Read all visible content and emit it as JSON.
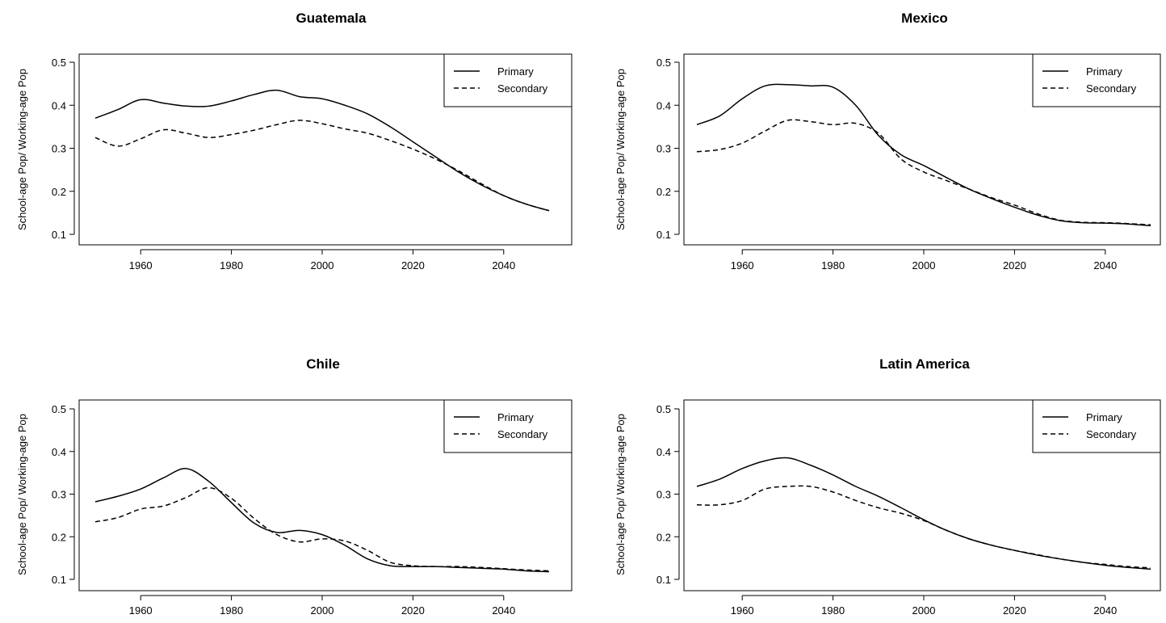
{
  "chart_data": [
    {
      "type": "line",
      "title": "Guatemala",
      "ylabel": "School-age Pop/ Working-age Pop",
      "xlabel": "",
      "xlim": [
        1950,
        2050
      ],
      "ylim": [
        0.1,
        0.5
      ],
      "xticks": [
        1960,
        1980,
        2000,
        2020,
        2040
      ],
      "yticks": [
        0.1,
        0.2,
        0.3,
        0.4,
        0.5
      ],
      "legend": {
        "placement": "top-right",
        "entries": [
          "Primary",
          "Secondary"
        ]
      },
      "series": [
        {
          "name": "Primary",
          "style": "solid",
          "x": [
            1950,
            1955,
            1960,
            1965,
            1970,
            1975,
            1980,
            1985,
            1990,
            1995,
            2000,
            2005,
            2010,
            2015,
            2020,
            2025,
            2030,
            2035,
            2040,
            2045,
            2050
          ],
          "y": [
            0.37,
            0.39,
            0.413,
            0.405,
            0.398,
            0.398,
            0.41,
            0.425,
            0.435,
            0.42,
            0.415,
            0.4,
            0.38,
            0.35,
            0.315,
            0.28,
            0.245,
            0.215,
            0.19,
            0.17,
            0.155
          ]
        },
        {
          "name": "Secondary",
          "style": "dashed",
          "x": [
            1950,
            1955,
            1960,
            1965,
            1970,
            1975,
            1980,
            1985,
            1990,
            1995,
            2000,
            2005,
            2010,
            2015,
            2020,
            2025,
            2030,
            2035,
            2040,
            2045,
            2050
          ],
          "y": [
            0.325,
            0.305,
            0.322,
            0.343,
            0.335,
            0.325,
            0.332,
            0.342,
            0.355,
            0.365,
            0.357,
            0.345,
            0.335,
            0.318,
            0.298,
            0.275,
            0.248,
            0.218,
            0.19,
            0.17,
            0.155
          ]
        }
      ]
    },
    {
      "type": "line",
      "title": "Mexico",
      "ylabel": "School-age Pop/ Working-age Pop",
      "xlabel": "",
      "xlim": [
        1950,
        2050
      ],
      "ylim": [
        0.1,
        0.5
      ],
      "xticks": [
        1960,
        1980,
        2000,
        2020,
        2040
      ],
      "yticks": [
        0.1,
        0.2,
        0.3,
        0.4,
        0.5
      ],
      "legend": {
        "placement": "top-right",
        "entries": [
          "Primary",
          "Secondary"
        ]
      },
      "series": [
        {
          "name": "Primary",
          "style": "solid",
          "x": [
            1950,
            1955,
            1960,
            1965,
            1970,
            1975,
            1980,
            1985,
            1990,
            1995,
            2000,
            2005,
            2010,
            2015,
            2020,
            2025,
            2030,
            2035,
            2040,
            2045,
            2050
          ],
          "y": [
            0.355,
            0.375,
            0.415,
            0.445,
            0.448,
            0.445,
            0.442,
            0.4,
            0.33,
            0.285,
            0.26,
            0.232,
            0.205,
            0.183,
            0.163,
            0.145,
            0.132,
            0.127,
            0.126,
            0.124,
            0.12
          ]
        },
        {
          "name": "Secondary",
          "style": "dashed",
          "x": [
            1950,
            1955,
            1960,
            1965,
            1970,
            1975,
            1980,
            1985,
            1990,
            1995,
            2000,
            2005,
            2010,
            2015,
            2020,
            2025,
            2030,
            2035,
            2040,
            2045,
            2050
          ],
          "y": [
            0.292,
            0.297,
            0.312,
            0.34,
            0.365,
            0.362,
            0.355,
            0.358,
            0.335,
            0.275,
            0.245,
            0.225,
            0.205,
            0.185,
            0.168,
            0.148,
            0.133,
            0.128,
            0.127,
            0.125,
            0.122
          ]
        }
      ]
    },
    {
      "type": "line",
      "title": "Chile",
      "ylabel": "School-age Pop/ Working-age Pop",
      "xlabel": "",
      "xlim": [
        1950,
        2050
      ],
      "ylim": [
        0.1,
        0.5
      ],
      "xticks": [
        1960,
        1980,
        2000,
        2020,
        2040
      ],
      "yticks": [
        0.1,
        0.2,
        0.3,
        0.4,
        0.5
      ],
      "legend": {
        "placement": "top-right",
        "entries": [
          "Primary",
          "Secondary"
        ]
      },
      "series": [
        {
          "name": "Primary",
          "style": "solid",
          "x": [
            1950,
            1955,
            1960,
            1965,
            1970,
            1975,
            1980,
            1985,
            1990,
            1995,
            2000,
            2005,
            2010,
            2015,
            2020,
            2025,
            2030,
            2035,
            2040,
            2045,
            2050
          ],
          "y": [
            0.282,
            0.295,
            0.312,
            0.338,
            0.36,
            0.33,
            0.28,
            0.232,
            0.21,
            0.215,
            0.205,
            0.18,
            0.148,
            0.132,
            0.13,
            0.13,
            0.128,
            0.126,
            0.124,
            0.12,
            0.118
          ]
        },
        {
          "name": "Secondary",
          "style": "dashed",
          "x": [
            1950,
            1955,
            1960,
            1965,
            1970,
            1975,
            1980,
            1985,
            1990,
            1995,
            2000,
            2005,
            2010,
            2015,
            2020,
            2025,
            2030,
            2035,
            2040,
            2045,
            2050
          ],
          "y": [
            0.235,
            0.245,
            0.265,
            0.272,
            0.292,
            0.315,
            0.29,
            0.243,
            0.205,
            0.188,
            0.195,
            0.19,
            0.168,
            0.14,
            0.132,
            0.13,
            0.13,
            0.128,
            0.125,
            0.122,
            0.12
          ]
        }
      ]
    },
    {
      "type": "line",
      "title": "Latin America",
      "ylabel": "School-age Pop/ Working-age Pop",
      "xlabel": "",
      "xlim": [
        1950,
        2050
      ],
      "ylim": [
        0.1,
        0.5
      ],
      "xticks": [
        1960,
        1980,
        2000,
        2020,
        2040
      ],
      "yticks": [
        0.1,
        0.2,
        0.3,
        0.4,
        0.5
      ],
      "legend": {
        "placement": "top-right",
        "entries": [
          "Primary",
          "Secondary"
        ]
      },
      "series": [
        {
          "name": "Primary",
          "style": "solid",
          "x": [
            1950,
            1955,
            1960,
            1965,
            1970,
            1975,
            1980,
            1985,
            1990,
            1995,
            2000,
            2005,
            2010,
            2015,
            2020,
            2025,
            2030,
            2035,
            2040,
            2045,
            2050
          ],
          "y": [
            0.318,
            0.335,
            0.36,
            0.378,
            0.385,
            0.368,
            0.345,
            0.318,
            0.295,
            0.268,
            0.24,
            0.215,
            0.195,
            0.18,
            0.168,
            0.157,
            0.148,
            0.14,
            0.133,
            0.128,
            0.124
          ]
        },
        {
          "name": "Secondary",
          "style": "dashed",
          "x": [
            1950,
            1955,
            1960,
            1965,
            1970,
            1975,
            1980,
            1985,
            1990,
            1995,
            2000,
            2005,
            2010,
            2015,
            2020,
            2025,
            2030,
            2035,
            2040,
            2045,
            2050
          ],
          "y": [
            0.275,
            0.275,
            0.285,
            0.312,
            0.318,
            0.318,
            0.305,
            0.285,
            0.268,
            0.255,
            0.238,
            0.215,
            0.195,
            0.18,
            0.168,
            0.158,
            0.148,
            0.14,
            0.135,
            0.13,
            0.127
          ]
        }
      ]
    }
  ]
}
